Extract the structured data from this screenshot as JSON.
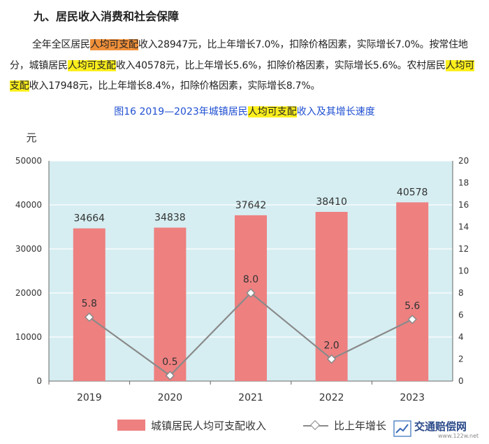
{
  "section_title": "九、居民收入消费和社会保障",
  "paragraph": {
    "s1a": "全年全区居民",
    "hl1": "人均可支配",
    "s1b": "收入28947元，比上年增长7.0%，扣除价格因素，实际增长7.0%。按常住地分，城镇居民",
    "hl2": "人均可支配",
    "s2b": "收入40578元，比上年增长5.6%，扣除价格因素，实际增长5.6%。农村居民",
    "hl3": "人均可支配",
    "s3b": "收入17948元，比上年增长8.4%，扣除价格因素，实际增长8.7%。"
  },
  "caption": {
    "a": "图16 2019—2023年城镇居民",
    "hl": "人均可支配",
    "b": "收入及其增长速度"
  },
  "colors": {
    "bar": "#ee8080",
    "line": "#8a8a8a",
    "plot_bg": "#d6eef2",
    "highlight_orange": "#f0903a",
    "highlight_yellow": "#fcef1c",
    "caption": "#1f4fd1"
  },
  "chart_data": {
    "type": "bar",
    "categories": [
      "2019",
      "2020",
      "2021",
      "2022",
      "2023"
    ],
    "series": [
      {
        "name": "城镇居民人均可支配收入",
        "type": "bar",
        "axis": "left",
        "values": [
          34664,
          34838,
          37642,
          38410,
          40578
        ]
      },
      {
        "name": "比上年增长",
        "type": "line",
        "axis": "right",
        "values": [
          5.8,
          0.5,
          8.0,
          2.0,
          5.6
        ]
      }
    ],
    "bar_labels": [
      "34664",
      "34838",
      "37642",
      "38410",
      "40578"
    ],
    "line_labels": [
      "5.8",
      "0.5",
      "8.0",
      "2.0",
      "5.6"
    ],
    "y_left_label": "元",
    "y_left_ticks": [
      "0",
      "10000",
      "20000",
      "30000",
      "40000",
      "50000"
    ],
    "y_left_lim": [
      0,
      50000
    ],
    "y_right_ticks": [
      "0",
      "2",
      "4",
      "6",
      "8",
      "10",
      "12",
      "14",
      "16",
      "18",
      "20"
    ],
    "y_right_lim": [
      0,
      20
    ],
    "legend": [
      "城镇居民人均可支配收入",
      "比上年增长"
    ],
    "legend_position": "bottom",
    "grid": "horizontal"
  },
  "watermark": {
    "name": "交通赔偿网",
    "url": "www.122w.net"
  }
}
